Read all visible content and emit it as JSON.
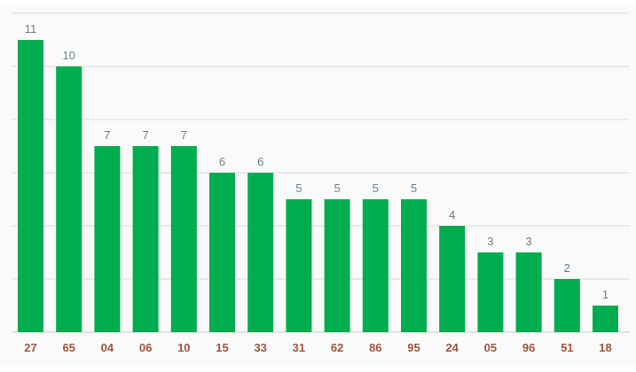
{
  "chart_data": {
    "type": "bar",
    "title": "",
    "xlabel": "",
    "ylabel": "",
    "categories": [
      "27",
      "65",
      "04",
      "06",
      "10",
      "15",
      "33",
      "31",
      "62",
      "86",
      "95",
      "24",
      "05",
      "96",
      "51",
      "18"
    ],
    "values": [
      11,
      10,
      7,
      7,
      7,
      6,
      6,
      5,
      5,
      5,
      5,
      4,
      3,
      3,
      2,
      1
    ],
    "ylim": [
      0,
      12
    ],
    "grid_step": 2,
    "grid": true,
    "legend": "none",
    "colors": {
      "bar": "#00ad4e",
      "value_label": "#6b7f8e",
      "tick_label": "#a0553c",
      "grid": "#d9d9d9",
      "background": "#fafafa"
    }
  }
}
